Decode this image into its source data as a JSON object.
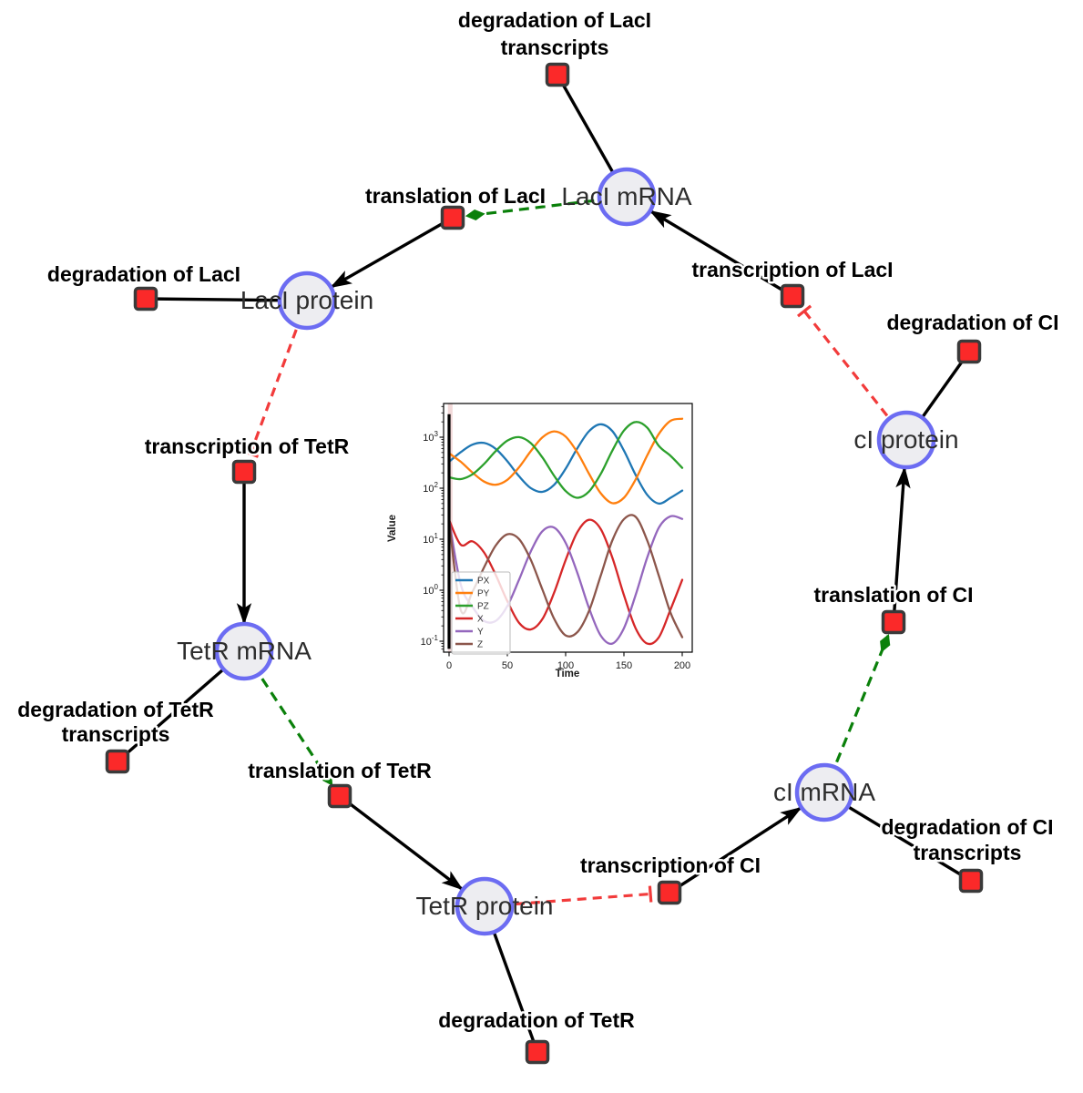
{
  "network": {
    "species": [
      {
        "id": "laci-mrna",
        "label": "LacI mRNA"
      },
      {
        "id": "laci-protein",
        "label": "LacI protein"
      },
      {
        "id": "tetr-mrna",
        "label": "TetR mRNA"
      },
      {
        "id": "tetr-protein",
        "label": "TetR protein"
      },
      {
        "id": "ci-mrna",
        "label": "cI mRNA"
      },
      {
        "id": "ci-protein",
        "label": "cI protein"
      }
    ],
    "reactions": [
      {
        "id": "degradation-laci-transcripts",
        "lines": [
          "degradation of LacI",
          "transcripts"
        ]
      },
      {
        "id": "translation-laci",
        "lines": [
          "translation of LacI"
        ]
      },
      {
        "id": "transcription-laci",
        "lines": [
          "transcription of LacI"
        ]
      },
      {
        "id": "degradation-laci",
        "lines": [
          "degradation of LacI"
        ]
      },
      {
        "id": "transcription-tetr",
        "lines": [
          "transcription of TetR"
        ]
      },
      {
        "id": "degradation-tetr-transcripts",
        "lines": [
          "degradation of TetR",
          "transcripts"
        ]
      },
      {
        "id": "translation-tetr",
        "lines": [
          "translation of TetR"
        ]
      },
      {
        "id": "degradation-tetr",
        "lines": [
          "degradation of TetR"
        ]
      },
      {
        "id": "transcription-ci",
        "lines": [
          "transcription of CI"
        ]
      },
      {
        "id": "degradation-ci-transcripts",
        "lines": [
          "degradation of CI",
          "transcripts"
        ]
      },
      {
        "id": "translation-ci",
        "lines": [
          "translation of CI"
        ]
      },
      {
        "id": "degradation-ci",
        "lines": [
          "degradation of CI"
        ]
      }
    ],
    "colors": {
      "species_fill": "#ededf1",
      "species_border": "#6c6cf2",
      "reaction_fill": "#fb2929",
      "reaction_border": "#3a3a3a",
      "consumption_edge": "#000000",
      "production_edge": "#000000",
      "modifier_edge": "#0a800a",
      "inhibition_edge": "#f23b3b"
    }
  },
  "chart_data": {
    "type": "line",
    "title": "",
    "xlabel": "Time",
    "ylabel": "Value",
    "x_ticks": [
      0,
      50,
      100,
      150,
      200
    ],
    "y_scale": "log",
    "y_tick_exponents": [
      3,
      2,
      1,
      0,
      -1
    ],
    "xlim": [
      -5,
      209
    ],
    "ylim_log": [
      -1.23,
      3.66
    ],
    "grid": false,
    "legend_position": "lower left",
    "marker_line_x": 0,
    "shaded_band_x": [
      -1,
      3
    ],
    "x": [
      0,
      10,
      20,
      30,
      40,
      50,
      60,
      70,
      80,
      90,
      100,
      110,
      120,
      130,
      140,
      150,
      160,
      170,
      180,
      190,
      200
    ],
    "series": [
      {
        "name": "PX",
        "color": "#1f77b4",
        "values": [
          330,
          509,
          713,
          771,
          591,
          338,
          172,
          101,
          85,
          116,
          241,
          604,
          1306,
          1794,
          1324,
          547,
          183,
          74,
          50,
          65,
          90
        ]
      },
      {
        "name": "PY",
        "color": "#ff7f0e",
        "values": [
          484,
          331,
          204,
          135,
          117,
          146,
          256,
          529,
          991,
          1300,
          1028,
          506,
          193,
          80,
          51,
          65,
          148,
          441,
          1164,
          2100,
          2300
        ]
      },
      {
        "name": "PZ",
        "color": "#2ca02c",
        "values": [
          164,
          151,
          187,
          299,
          534,
          857,
          1004,
          768,
          403,
          177,
          88,
          65,
          86,
          188,
          543,
          1349,
          1991,
          1531,
          673,
          430,
          250
        ]
      },
      {
        "name": "X",
        "color": "#d62728",
        "values": [
          24,
          7.8,
          9.1,
          5.5,
          2.0,
          0.61,
          0.23,
          0.17,
          0.27,
          0.88,
          3.9,
          13.7,
          24.0,
          16.0,
          4.4,
          0.8,
          0.18,
          0.09,
          0.12,
          0.42,
          1.6
        ]
      },
      {
        "name": "Y",
        "color": "#9467bd",
        "values": [
          24,
          1.3,
          0.48,
          0.25,
          0.25,
          0.49,
          1.6,
          5.7,
          14.3,
          16.9,
          8.5,
          2.2,
          0.45,
          0.13,
          0.09,
          0.18,
          0.8,
          4.4,
          16.9,
          28.2,
          25
        ]
      },
      {
        "name": "Z",
        "color": "#8c564b",
        "values": [
          24,
          0.41,
          0.93,
          2.8,
          7.5,
          12.5,
          10.1,
          4.0,
          1.04,
          0.28,
          0.13,
          0.15,
          0.39,
          1.9,
          9.4,
          24.7,
          27.5,
          9.4,
          1.9,
          0.36,
          0.12
        ]
      }
    ]
  }
}
